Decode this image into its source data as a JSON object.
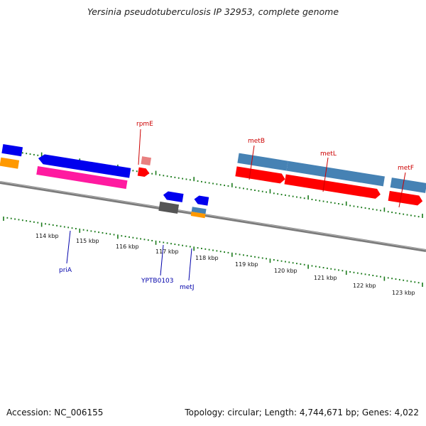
{
  "title": "Yersinia pseudotuberculosis IP 32953, complete genome",
  "footer": {
    "accession": "Accession: NC_006155",
    "summary": "Topology: circular; Length: 4,744,671 bp; Genes: 4,022"
  },
  "colors": {
    "backbone": "#808080",
    "tick": "#1a7a1a",
    "label_top": "#cc0000",
    "label_bottom": "#0000aa",
    "cds_red": "#ff0000",
    "cds_blue": "#0000ff",
    "steelblue": "#4682b4",
    "pink": "#ff1aa0",
    "orange": "#ff9900",
    "gray": "#555555",
    "rose": "#e88080"
  },
  "kbp_labels": [
    "114 kbp",
    "115 kbp",
    "116 kbp",
    "117 kbp",
    "118 kbp",
    "119 kbp",
    "120 kbp",
    "121 kbp",
    "122 kbp",
    "123 kbp"
  ],
  "gene_labels_top": [
    "rpmE",
    "metB",
    "metL",
    "metF"
  ],
  "gene_labels_bottom": [
    "priA",
    "YPTB0103",
    "metJ"
  ]
}
